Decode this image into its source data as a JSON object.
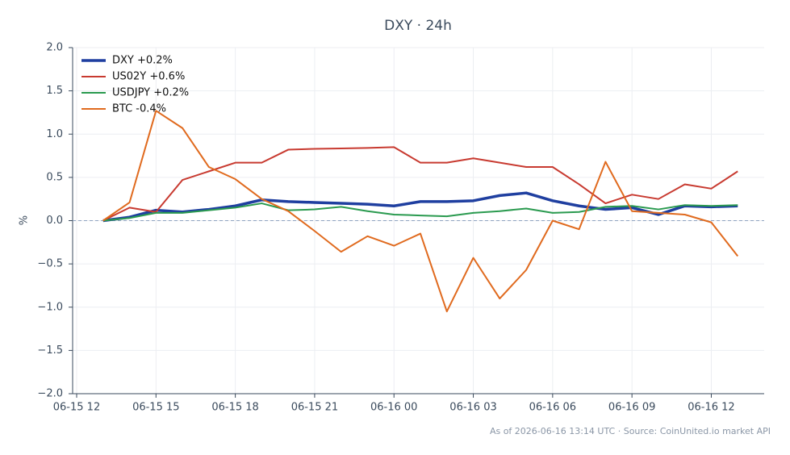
{
  "chart_data": {
    "type": "line",
    "title": "DXY · 24h",
    "ylabel": "%",
    "note": "As of 2026-06-16 13:14 UTC · Source: CoinUnited.io market API",
    "x": [
      "06-15 13",
      "06-15 14",
      "06-15 15",
      "06-15 16",
      "06-15 17",
      "06-15 18",
      "06-15 19",
      "06-15 20",
      "06-15 21",
      "06-15 22",
      "06-15 23",
      "06-16 00",
      "06-16 01",
      "06-16 02",
      "06-16 03",
      "06-16 04",
      "06-16 05",
      "06-16 06",
      "06-16 07",
      "06-16 08",
      "06-16 09",
      "06-16 10",
      "06-16 11",
      "06-16 12",
      "06-16 13"
    ],
    "series": [
      {
        "name": "DXY +0.2%",
        "color": "#1f3fa0",
        "width": 3.5,
        "values": [
          0,
          0.04,
          0.12,
          0.1,
          0.13,
          0.17,
          0.24,
          0.22,
          0.21,
          0.2,
          0.19,
          0.17,
          0.22,
          0.22,
          0.23,
          0.29,
          0.32,
          0.23,
          0.17,
          0.13,
          0.15,
          0.07,
          0.17,
          0.16,
          0.17
        ]
      },
      {
        "name": "US02Y +0.6%",
        "color": "#c83a30",
        "width": 2,
        "values": [
          0,
          0.15,
          0.1,
          0.47,
          0.57,
          0.67,
          0.67,
          0.82,
          0.83,
          0.835,
          0.84,
          0.85,
          0.67,
          0.67,
          0.72,
          0.67,
          0.62,
          0.62,
          0.42,
          0.2,
          0.3,
          0.25,
          0.42,
          0.37,
          0.57
        ]
      },
      {
        "name": "USDJPY +0.2%",
        "color": "#2a9a4f",
        "width": 2,
        "values": [
          0,
          0.03,
          0.09,
          0.09,
          0.12,
          0.15,
          0.2,
          0.12,
          0.13,
          0.16,
          0.11,
          0.07,
          0.06,
          0.05,
          0.09,
          0.11,
          0.14,
          0.09,
          0.1,
          0.16,
          0.17,
          0.13,
          0.18,
          0.17,
          0.18
        ]
      },
      {
        "name": "BTC -0.4%",
        "color": "#e06a1e",
        "width": 2,
        "values": [
          0,
          0.21,
          1.27,
          1.07,
          0.62,
          0.48,
          0.25,
          0.11,
          -0.12,
          -0.36,
          -0.18,
          -0.29,
          -0.15,
          -1.05,
          -0.43,
          -0.9,
          -0.57,
          0,
          -0.1,
          0.68,
          0.11,
          0.09,
          0.07,
          -0.02,
          -0.41
        ]
      }
    ],
    "xlim": [
      "06-15 12",
      "06-16 14"
    ],
    "xticks": [
      "06-15 12",
      "06-15 15",
      "06-15 18",
      "06-15 21",
      "06-16 00",
      "06-16 03",
      "06-16 06",
      "06-16 09",
      "06-16 12"
    ],
    "ylim": [
      -2.0,
      2.0
    ],
    "yticks": [
      {
        "value": -2,
        "label": "−2.0"
      },
      {
        "value": -1.5,
        "label": "−1.5"
      },
      {
        "value": -1,
        "label": "−1.0"
      },
      {
        "value": -0.5,
        "label": "−0.5"
      },
      {
        "value": 0,
        "label": "0.0"
      },
      {
        "value": 0.5,
        "label": "0.5"
      },
      {
        "value": 1,
        "label": "1.0"
      },
      {
        "value": 1.5,
        "label": "1.5"
      },
      {
        "value": 2,
        "label": "2.0"
      }
    ],
    "grid": true,
    "zero_line": true,
    "legend": "upper left"
  }
}
